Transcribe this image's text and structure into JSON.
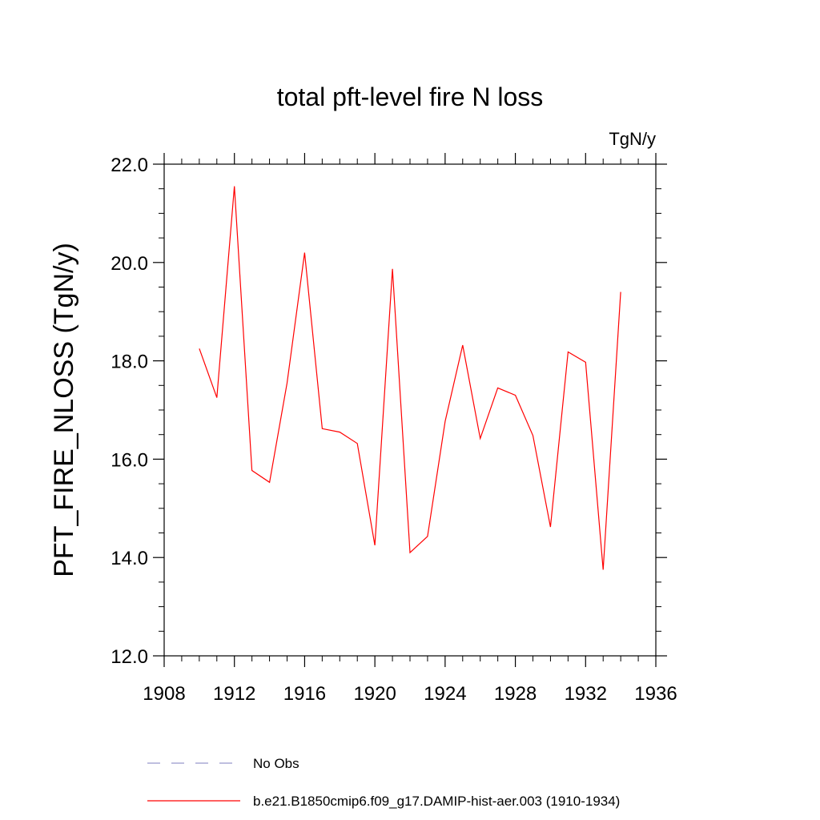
{
  "chart_data": {
    "type": "line",
    "title": "total pft-level fire N loss",
    "units": "TgN/y",
    "ylabel": "PFT_FIRE_NLOSS  (TgN/y)",
    "xlabel": "",
    "xlim": [
      1908,
      1936
    ],
    "ylim": [
      12.0,
      22.0
    ],
    "xticks": [
      1908,
      1912,
      1916,
      1920,
      1924,
      1928,
      1932,
      1936
    ],
    "xtick_labels": [
      "1908",
      "1912",
      "1916",
      "1920",
      "1924",
      "1928",
      "1932",
      "1936"
    ],
    "yticks": [
      12.0,
      14.0,
      16.0,
      18.0,
      20.0,
      22.0
    ],
    "ytick_labels": [
      "12.0",
      "14.0",
      "16.0",
      "18.0",
      "20.0",
      "22.0"
    ],
    "grid": false,
    "legend_position": "bottom",
    "series": [
      {
        "name": "b.e21.B1850cmip6.f09_g17.DAMIP-hist-aer.003 (1910-1934)",
        "color": "#ff0000",
        "style": "solid",
        "x": [
          1910,
          1911,
          1912,
          1913,
          1914,
          1915,
          1916,
          1917,
          1918,
          1919,
          1920,
          1921,
          1922,
          1923,
          1924,
          1925,
          1926,
          1927,
          1928,
          1929,
          1930,
          1931,
          1932,
          1933,
          1934
        ],
        "y": [
          18.25,
          17.25,
          21.55,
          15.77,
          15.53,
          17.55,
          20.2,
          16.62,
          16.55,
          16.32,
          14.25,
          19.87,
          14.1,
          14.43,
          16.77,
          18.32,
          16.42,
          17.45,
          17.3,
          16.48,
          14.62,
          18.18,
          17.97,
          13.75,
          19.4
        ]
      }
    ],
    "legend": [
      {
        "label": "No Obs",
        "color": "#9999cc",
        "style": "dashed"
      },
      {
        "label": "b.e21.B1850cmip6.f09_g17.DAMIP-hist-aer.003 (1910-1934)",
        "color": "#ff0000",
        "style": "solid"
      }
    ]
  }
}
